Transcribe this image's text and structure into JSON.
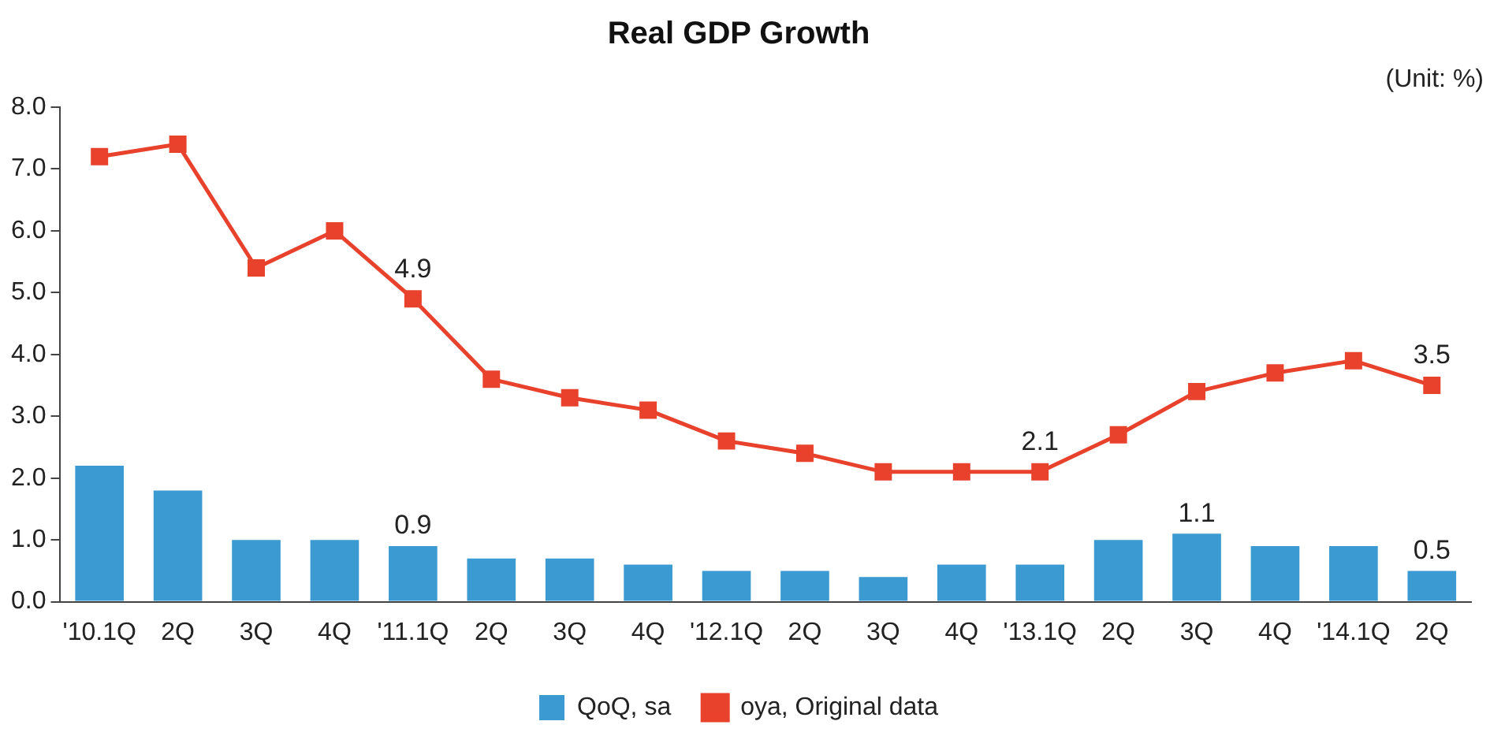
{
  "chart_data": {
    "type": "bar",
    "title": "Real GDP Growth",
    "annotations": [
      "(Unit: %)"
    ],
    "categories": [
      "'10.1Q",
      "2Q",
      "3Q",
      "4Q",
      "'11.1Q",
      "2Q",
      "3Q",
      "4Q",
      "'12.1Q",
      "2Q",
      "3Q",
      "4Q",
      "'13.1Q",
      "2Q",
      "3Q",
      "4Q",
      "'14.1Q",
      "2Q"
    ],
    "series": [
      {
        "name": "QoQ, sa",
        "color": "#3a9ad1",
        "values": [
          2.2,
          1.8,
          1.0,
          1.0,
          0.9,
          0.7,
          0.7,
          0.6,
          0.5,
          0.5,
          0.4,
          0.6,
          0.6,
          1.0,
          1.1,
          0.9,
          0.9,
          0.5
        ],
        "value_labels": [
          null,
          null,
          null,
          null,
          "0.9",
          null,
          null,
          null,
          null,
          null,
          null,
          null,
          null,
          null,
          "1.1",
          null,
          null,
          "0.5"
        ]
      },
      {
        "name": "oya, Original data",
        "type": "line",
        "color": "#e8412c",
        "marker": "square",
        "values": [
          7.2,
          7.4,
          5.4,
          6.0,
          4.9,
          3.6,
          3.3,
          3.1,
          2.6,
          2.4,
          2.1,
          2.1,
          2.1,
          2.7,
          3.4,
          3.7,
          3.9,
          3.5
        ],
        "value_labels": [
          null,
          null,
          null,
          null,
          "4.9",
          null,
          null,
          null,
          null,
          null,
          null,
          null,
          "2.1",
          null,
          null,
          null,
          null,
          "3.5"
        ]
      }
    ],
    "ylim": [
      0,
      8
    ],
    "yticks": [
      {
        "value": 0,
        "label": "0.0"
      },
      {
        "value": 1,
        "label": "1.0"
      },
      {
        "value": 2,
        "label": "2.0"
      },
      {
        "value": 3,
        "label": "3.0"
      },
      {
        "value": 4,
        "label": "4.0"
      },
      {
        "value": 5,
        "label": "5.0"
      },
      {
        "value": 6,
        "label": "6.0"
      },
      {
        "value": 7,
        "label": "7.0"
      },
      {
        "value": 8,
        "label": "8.0"
      }
    ],
    "grid": false,
    "legend": "bottom"
  }
}
